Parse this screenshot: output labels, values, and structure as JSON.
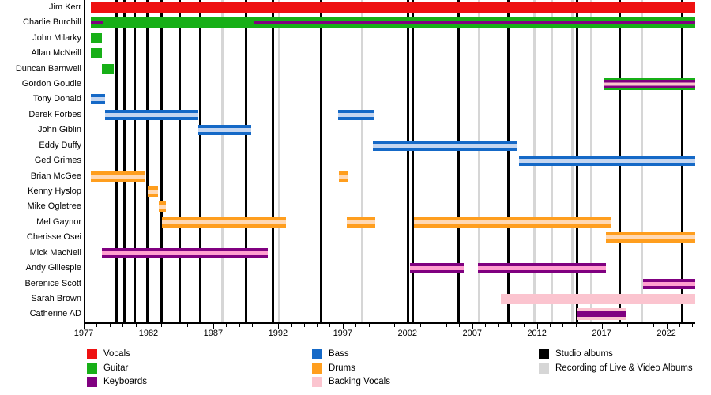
{
  "chart_data": {
    "type": "timeline",
    "x_axis": {
      "start_year": 1977,
      "end_year": 2024.1,
      "tick_interval_years": 1,
      "labeled_years": [
        1977,
        1982,
        1987,
        1992,
        1997,
        2002,
        2007,
        2012,
        2017,
        2022
      ]
    },
    "roles": [
      {
        "id": "vocals",
        "label": "Vocals",
        "color": "#EE1111",
        "stripe": "#EE1111"
      },
      {
        "id": "guitar",
        "label": "Guitar",
        "color": "#17AF17",
        "stripe": "#17AF17"
      },
      {
        "id": "keyboards",
        "label": "Keyboards",
        "color": "#800080",
        "stripe": "#FF9FD0"
      },
      {
        "id": "bass",
        "label": "Bass",
        "color": "#1569C7",
        "stripe": "#C5D6F0"
      },
      {
        "id": "drums",
        "label": "Drums",
        "color": "#FF9E1E",
        "stripe": "#FFD9B5"
      },
      {
        "id": "backing_vocals",
        "label": "Backing Vocals",
        "color": "#FBC4CF",
        "stripe": "#FBC4CF"
      }
    ],
    "albums": {
      "studio_albums": {
        "label": "Studio albums",
        "color": "#000000",
        "years": [
          1979.4,
          1980.0,
          1980.8,
          1981.8,
          1982.9,
          1984.3,
          1985.9,
          1989.4,
          1991.5,
          1995.2,
          2001.9,
          2002.3,
          2005.8,
          2009.7,
          2015.0,
          2018.3,
          2023.1
        ]
      },
      "live_recordings": {
        "label": "Recording of Live & Video Albums",
        "color": "#D6D6D6",
        "years": [
          1987.6,
          1992.0,
          1998.4,
          2007.4,
          2011.7,
          2013.0,
          2014.6,
          2016.1,
          2020.0
        ]
      }
    },
    "members": [
      {
        "name": "Jim Kerr",
        "bars": [
          {
            "style": "vocals",
            "start": 1977.4,
            "end": 2024.1
          }
        ]
      },
      {
        "name": "Charlie Burchill",
        "bars": [
          {
            "style": "guitar",
            "start": 1977.4,
            "end": 2024.1
          },
          {
            "style": "keys_overlay",
            "start": 1977.4,
            "end": 1978.4
          },
          {
            "style": "keys_overlay",
            "start": 1990.0,
            "end": 2024.1
          }
        ]
      },
      {
        "name": "John Milarky",
        "bars": [
          {
            "style": "guitar",
            "start": 1977.4,
            "end": 1978.3
          }
        ]
      },
      {
        "name": "Allan McNeill",
        "bars": [
          {
            "style": "guitar",
            "start": 1977.4,
            "end": 1978.3
          }
        ]
      },
      {
        "name": "Duncan Barnwell",
        "bars": [
          {
            "style": "guitar",
            "start": 1978.3,
            "end": 1979.2
          }
        ]
      },
      {
        "name": "Gordon Goudie",
        "bars": [
          {
            "style": "guitar_keys_bv",
            "start": 2017.1,
            "end": 2024.1
          }
        ]
      },
      {
        "name": "Tony Donald",
        "bars": [
          {
            "style": "bass",
            "start": 1977.4,
            "end": 1978.5
          }
        ]
      },
      {
        "name": "Derek Forbes",
        "bars": [
          {
            "style": "bass",
            "start": 1978.5,
            "end": 1985.7
          },
          {
            "style": "bass",
            "start": 1996.5,
            "end": 1999.3
          }
        ]
      },
      {
        "name": "John Giblin",
        "bars": [
          {
            "style": "bass",
            "start": 1985.7,
            "end": 1989.8
          }
        ]
      },
      {
        "name": "Eddy Duffy",
        "bars": [
          {
            "style": "bass",
            "start": 1999.2,
            "end": 2010.3
          }
        ]
      },
      {
        "name": "Ged Grimes",
        "bars": [
          {
            "style": "bass",
            "start": 2010.5,
            "end": 2024.1
          }
        ]
      },
      {
        "name": "Brian McGee",
        "bars": [
          {
            "style": "drums",
            "start": 1977.4,
            "end": 1981.6
          },
          {
            "style": "drums",
            "start": 1996.6,
            "end": 1997.3
          }
        ]
      },
      {
        "name": "Kenny Hyslop",
        "bars": [
          {
            "style": "drums",
            "start": 1981.8,
            "end": 1982.6
          }
        ]
      },
      {
        "name": "Mike Ogletree",
        "bars": [
          {
            "style": "drums",
            "start": 1982.7,
            "end": 1983.2
          }
        ]
      },
      {
        "name": "Mel Gaynor",
        "bars": [
          {
            "style": "drums",
            "start": 1982.9,
            "end": 1992.5
          },
          {
            "style": "drums",
            "start": 1997.2,
            "end": 1999.4
          },
          {
            "style": "drums",
            "start": 2002.4,
            "end": 2017.6
          }
        ]
      },
      {
        "name": "Cherisse Osei",
        "bars": [
          {
            "style": "drums",
            "start": 2017.2,
            "end": 2024.1
          }
        ]
      },
      {
        "name": "Mick MacNeil",
        "bars": [
          {
            "style": "keyboards",
            "start": 1978.3,
            "end": 1991.1
          }
        ]
      },
      {
        "name": "Andy Gillespie",
        "bars": [
          {
            "style": "keyboards",
            "start": 2002.1,
            "end": 2006.2
          },
          {
            "style": "keyboards",
            "start": 2007.3,
            "end": 2017.2
          }
        ]
      },
      {
        "name": "Berenice Scott",
        "bars": [
          {
            "style": "keyboards",
            "start": 2020.1,
            "end": 2024.1
          }
        ]
      },
      {
        "name": "Sarah Brown",
        "bars": [
          {
            "style": "backing_vocals",
            "start": 2009.1,
            "end": 2024.1
          }
        ]
      },
      {
        "name": "Catherine AD",
        "bars": [
          {
            "style": "bv_keys",
            "start": 2015.0,
            "end": 2018.8
          }
        ]
      }
    ]
  },
  "legend": {
    "columns": [
      {
        "items": [
          "vocals",
          "guitar",
          "keyboards"
        ]
      },
      {
        "items": [
          "bass",
          "drums",
          "backing_vocals"
        ]
      },
      {
        "items": [
          "studio_albums",
          "live_recordings"
        ]
      }
    ]
  }
}
